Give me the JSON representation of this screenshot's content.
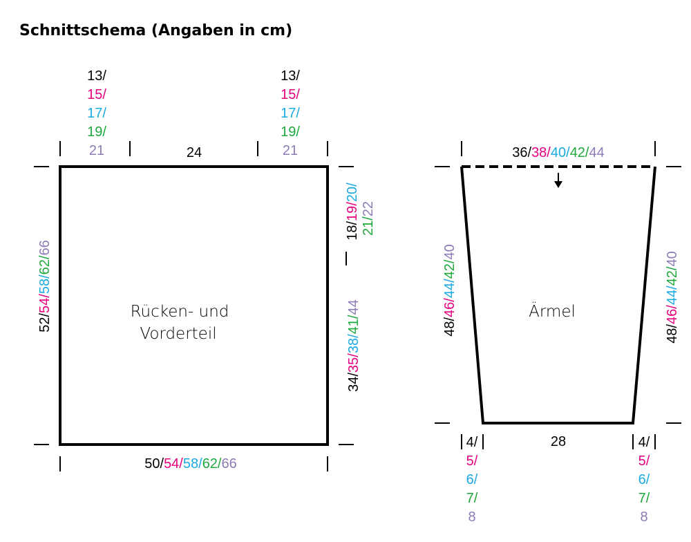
{
  "title": "Schnittschema (Angaben in cm)",
  "colors": {
    "size1": "#000000",
    "size2": "#e6007e",
    "size3": "#1ba9e1",
    "size4": "#1ea83c",
    "size5": "#8e7bb5",
    "line": "#000000"
  },
  "body_piece": {
    "label_line1": "Rücken- und",
    "label_line2": "Vorderteil",
    "shoulder_left": [
      "13/",
      "15/",
      "17/",
      "19/",
      "21"
    ],
    "shoulder_right": [
      "13/",
      "15/",
      "17/",
      "19/",
      "21"
    ],
    "neck": "24",
    "bottom_width": [
      "50/",
      "54/",
      "58/",
      "62/",
      "66"
    ],
    "height_left": [
      "52/",
      "54/",
      "58/",
      "62/",
      "66"
    ],
    "armhole_line1": [
      "18/",
      "19/",
      "20/"
    ],
    "armhole_line2": [
      "21/",
      "22"
    ],
    "side_length": [
      "34/",
      "35/",
      "38/",
      "41/",
      "44"
    ]
  },
  "sleeve": {
    "label": "Ärmel",
    "top_width": [
      "36/",
      "38/",
      "40/",
      "42/",
      "44"
    ],
    "bottom_width": "28",
    "length_left": [
      "48/",
      "46/",
      "44/",
      "42/",
      "40"
    ],
    "length_right": [
      "48/",
      "46/",
      "44/",
      "42/",
      "40"
    ],
    "inset_left": [
      "4/",
      "5/",
      "6/",
      "7/",
      "8"
    ],
    "inset_right": [
      "4/",
      "5/",
      "6/",
      "7/",
      "8"
    ]
  }
}
